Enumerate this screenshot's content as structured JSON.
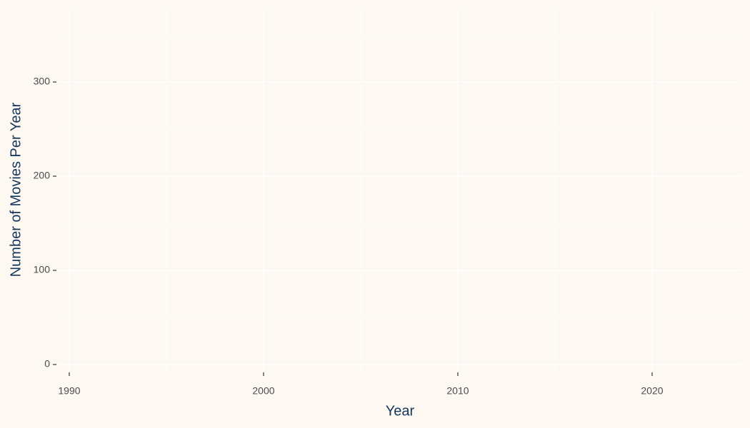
{
  "chart_data": {
    "type": "line",
    "x_label": "Year",
    "y_label": "Number of Movies Per Year",
    "xlim": [
      1989.45,
      2024.56
    ],
    "xticks": [
      1990,
      2000,
      2010,
      2020
    ],
    "x_minor_ticks": [
      1995,
      2005,
      2015
    ],
    "ylim": [
      -6.8,
      378
    ],
    "yticks": [
      0,
      100,
      200,
      300
    ],
    "y_minor_ticks": [
      50,
      150,
      250,
      350
    ],
    "grid": true,
    "series": []
  }
}
